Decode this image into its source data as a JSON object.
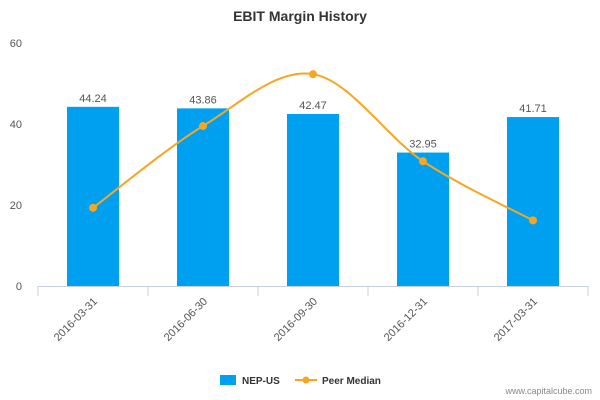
{
  "chart_data": {
    "type": "bar",
    "title": "EBIT Margin History",
    "categories": [
      "2016-03-31",
      "2016-06-30",
      "2016-09-30",
      "2016-12-31",
      "2017-03-31"
    ],
    "series": [
      {
        "name": "NEP-US",
        "type": "bar",
        "color": "#00a0f0",
        "values": [
          44.24,
          43.86,
          42.47,
          32.95,
          41.71
        ],
        "labels": [
          "44.24",
          "43.86",
          "42.47",
          "32.95",
          "41.71"
        ]
      },
      {
        "name": "Peer Median",
        "type": "line",
        "color": "#f5a623",
        "values": [
          19.3,
          39.5,
          52.3,
          30.8,
          16.2
        ]
      }
    ],
    "ylim": [
      0,
      60
    ],
    "yticks": [
      0,
      20,
      40,
      60
    ],
    "grid": false,
    "legend": "bottom-center"
  },
  "credit": "www.capitalcube.com"
}
